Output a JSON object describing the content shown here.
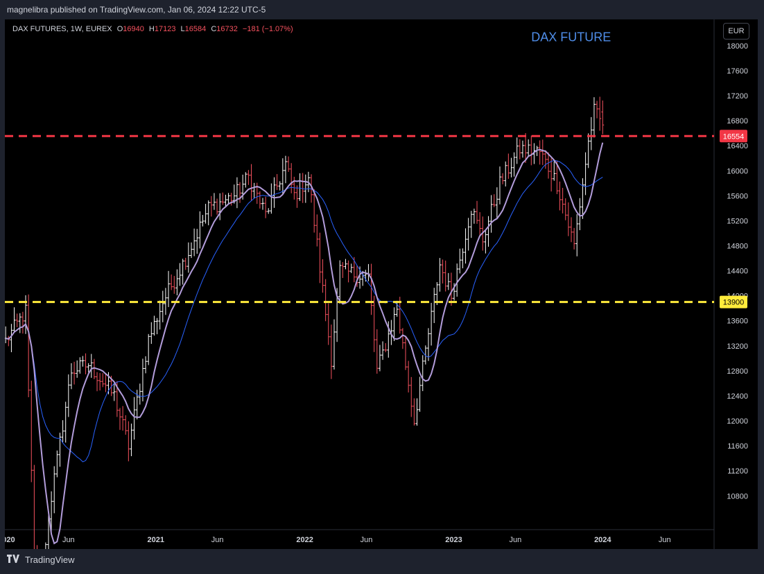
{
  "header": {
    "published_by": "magnelibra published on TradingView.com, Jan 06, 2024 12:22 UTC-5"
  },
  "legend": {
    "symbol": "DAX FUTURES, 1W, EUREX",
    "open_label": "O",
    "open": "16940",
    "high_label": "H",
    "high": "17123",
    "low_label": "L",
    "low": "16584",
    "close_label": "C",
    "close": "16732",
    "change": "−181 (−1.07%)"
  },
  "currency": "EUR",
  "footer": {
    "logo_icon": "tradingview-logo-icon",
    "brand": "TradingView"
  },
  "colors": {
    "background": "#000000",
    "panel": "#1e222d",
    "bar_up": "#ffffff",
    "bar_down": "#f7525f",
    "ma_fast": "#b39ddb",
    "ma_slow": "#2962ff",
    "resistance": "#f23645",
    "support": "#ffeb3b",
    "annotation": "#4f8de8"
  },
  "chart_data": {
    "type": "ohlc-bar",
    "title": "DAX FUTURE",
    "x_axis": {
      "ticks": [
        {
          "label": "2020",
          "date": "2020-01-01"
        },
        {
          "label": "Jun",
          "date": "2020-06-01"
        },
        {
          "label": "2021",
          "date": "2021-01-01"
        },
        {
          "label": "Jun",
          "date": "2021-06-01"
        },
        {
          "label": "2022",
          "date": "2022-01-01"
        },
        {
          "label": "Jun",
          "date": "2022-06-01"
        },
        {
          "label": "2023",
          "date": "2023-01-01"
        },
        {
          "label": "Jun",
          "date": "2023-06-01"
        },
        {
          "label": "2024",
          "date": "2024-01-01"
        },
        {
          "label": "Jun",
          "date": "2024-06-01"
        }
      ],
      "range": [
        "2019-12-28",
        "2024-09-30"
      ]
    },
    "y_axis": {
      "ticks": [
        10800,
        11200,
        11600,
        12000,
        12400,
        12800,
        13200,
        13600,
        14000,
        14400,
        14800,
        15200,
        15600,
        16000,
        16400,
        16800,
        17200,
        17600,
        18000
      ],
      "range": [
        10260,
        18420
      ],
      "position": "right"
    },
    "horizontal_lines": [
      {
        "value": 16554,
        "label": "16554",
        "style": "dashed",
        "color": "#f23645"
      },
      {
        "value": 13900,
        "label": "13900",
        "style": "dashed",
        "color": "#ffeb3b"
      }
    ],
    "anchors": [
      {
        "date": "2019-12-30",
        "close": 13280
      },
      {
        "date": "2020-02-17",
        "close": 13750
      },
      {
        "date": "2020-03-16",
        "close": 8500
      },
      {
        "date": "2020-04-13",
        "close": 10500
      },
      {
        "date": "2020-06-08",
        "close": 12800
      },
      {
        "date": "2020-07-20",
        "close": 12900
      },
      {
        "date": "2020-09-21",
        "close": 12400
      },
      {
        "date": "2020-10-26",
        "close": 11600
      },
      {
        "date": "2020-12-14",
        "close": 13300
      },
      {
        "date": "2021-01-18",
        "close": 13900
      },
      {
        "date": "2021-03-15",
        "close": 14600
      },
      {
        "date": "2021-05-10",
        "close": 15400
      },
      {
        "date": "2021-07-12",
        "close": 15600
      },
      {
        "date": "2021-08-16",
        "close": 15900
      },
      {
        "date": "2021-09-27",
        "close": 15300
      },
      {
        "date": "2021-11-15",
        "close": 16100
      },
      {
        "date": "2021-12-06",
        "close": 15600
      },
      {
        "date": "2022-01-10",
        "close": 15900
      },
      {
        "date": "2022-03-07",
        "close": 13000
      },
      {
        "date": "2022-03-28",
        "close": 14400
      },
      {
        "date": "2022-06-06",
        "close": 14300
      },
      {
        "date": "2022-06-27",
        "close": 12800
      },
      {
        "date": "2022-08-15",
        "close": 13800
      },
      {
        "date": "2022-09-26",
        "close": 12000
      },
      {
        "date": "2022-11-28",
        "close": 14500
      },
      {
        "date": "2022-12-26",
        "close": 14000
      },
      {
        "date": "2023-02-13",
        "close": 15400
      },
      {
        "date": "2023-03-13",
        "close": 14900
      },
      {
        "date": "2023-04-24",
        "close": 15800
      },
      {
        "date": "2023-06-12",
        "close": 16350
      },
      {
        "date": "2023-07-31",
        "close": 16300
      },
      {
        "date": "2023-09-11",
        "close": 15800
      },
      {
        "date": "2023-10-23",
        "close": 14800
      },
      {
        "date": "2023-11-27",
        "close": 16450
      },
      {
        "date": "2023-12-11",
        "close": 16950
      },
      {
        "date": "2024-01-01",
        "close": 16732
      }
    ],
    "series": [
      {
        "name": "MA fast",
        "type": "line",
        "color": "#b39ddb"
      },
      {
        "name": "MA slow",
        "type": "line",
        "color": "#2962ff"
      }
    ],
    "annotations": [
      {
        "text": "DAX FUTURE",
        "date": "2023-07-10",
        "value": 18070,
        "color": "#4f8de8"
      }
    ]
  }
}
